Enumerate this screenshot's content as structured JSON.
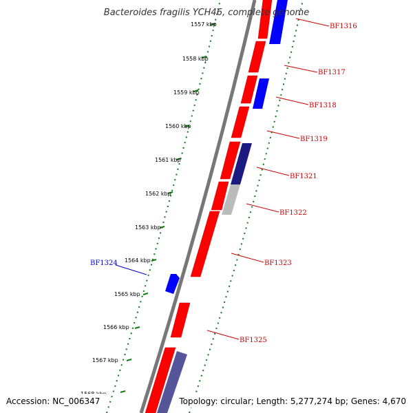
{
  "title": "Bacteroides fragilis YCH46, complete genome",
  "footer": {
    "accession": "Accession: NC_006347",
    "summary": "Topology: circular; Length: 5,277,274 bp; Genes: 4,670"
  },
  "colors": {
    "forward_gene": "#ff0000",
    "reverse_gene": "#0000ff",
    "dark_gene": "#1a1a80",
    "slate_gene": "#555599",
    "gray_gene": "#bbbbbb",
    "backbone": "#777777",
    "ruler": "#117711",
    "label_red": "#cc0000",
    "label_blue": "#0000cc"
  },
  "ruler_ticks": [
    "1557 kbp",
    "1558 kbp",
    "1559 kbp",
    "1560 kbp",
    "1561 kbp",
    "1562 kbp",
    "1563 kbp",
    "1564 kbp",
    "1565 kbp",
    "1566 kbp",
    "1567 kbp",
    "1568 kbp"
  ],
  "gene_labels": [
    {
      "text": "BF1316",
      "color": "red"
    },
    {
      "text": "BF1317",
      "color": "red"
    },
    {
      "text": "BF1318",
      "color": "red"
    },
    {
      "text": "BF1319",
      "color": "red"
    },
    {
      "text": "BF1321",
      "color": "red"
    },
    {
      "text": "BF1322",
      "color": "red"
    },
    {
      "text": "BF1323",
      "color": "red"
    },
    {
      "text": "BF1324",
      "color": "blue"
    },
    {
      "text": "BF1325",
      "color": "red"
    }
  ]
}
